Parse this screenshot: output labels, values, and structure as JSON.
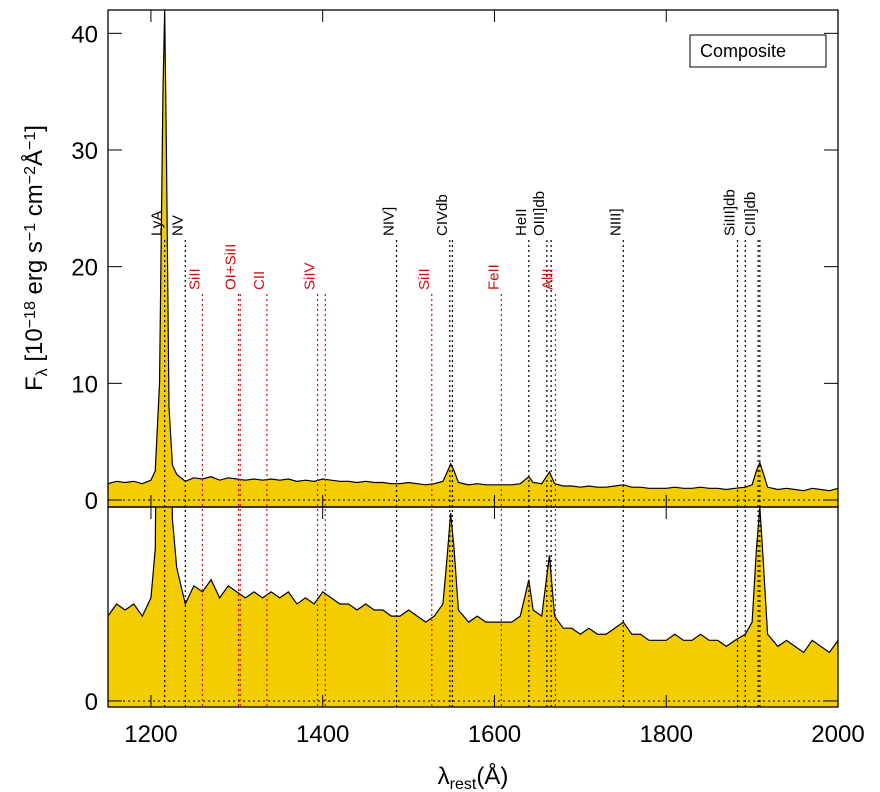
{
  "chart_data": {
    "type": "area",
    "xlabel": [
      {
        "text": "λ"
      },
      {
        "text": "rest",
        "sub": true
      },
      {
        "text": "(Å)"
      }
    ],
    "ylabel": [
      {
        "text": "F"
      },
      {
        "text": "λ",
        "sub": true
      },
      {
        "text": " [10"
      },
      {
        "text": "−18",
        "sup": true
      },
      {
        "text": " erg s"
      },
      {
        "text": "−1",
        "sup": true
      },
      {
        "text": " cm"
      },
      {
        "text": "−2",
        "sup": true
      },
      {
        "text": "Å"
      },
      {
        "text": "−1",
        "sup": true
      },
      {
        "text": "]"
      }
    ],
    "legend": "Composite",
    "legend_corner": "top-right",
    "color": "#f4cd00",
    "xlim": [
      1150,
      2000
    ],
    "xticks": [
      1200,
      1400,
      1600,
      1800,
      2000
    ],
    "panels": [
      {
        "ylim": [
          -0.6,
          42
        ],
        "yticks": [
          0,
          10,
          20,
          30,
          40
        ]
      },
      {
        "ylim": [
          -0.1,
          3.2
        ],
        "yticks": [
          0
        ]
      }
    ],
    "x": [
      1150,
      1160,
      1170,
      1180,
      1190,
      1200,
      1205,
      1210,
      1214,
      1216,
      1218,
      1221,
      1225,
      1230,
      1240,
      1250,
      1260,
      1270,
      1280,
      1290,
      1300,
      1310,
      1320,
      1330,
      1340,
      1350,
      1360,
      1370,
      1380,
      1390,
      1400,
      1410,
      1420,
      1430,
      1440,
      1450,
      1460,
      1470,
      1480,
      1490,
      1500,
      1510,
      1520,
      1530,
      1540,
      1545,
      1549,
      1553,
      1558,
      1570,
      1580,
      1590,
      1600,
      1610,
      1620,
      1630,
      1640,
      1645,
      1655,
      1664,
      1670,
      1680,
      1690,
      1700,
      1710,
      1720,
      1730,
      1740,
      1750,
      1760,
      1770,
      1780,
      1790,
      1800,
      1810,
      1820,
      1830,
      1840,
      1850,
      1860,
      1870,
      1880,
      1892,
      1900,
      1905,
      1909,
      1913,
      1918,
      1930,
      1940,
      1950,
      1960,
      1970,
      1980,
      1990,
      2000
    ],
    "values": [
      1.4,
      1.6,
      1.5,
      1.6,
      1.4,
      1.7,
      2.5,
      10,
      35,
      42,
      30,
      8,
      3,
      2.2,
      1.6,
      1.9,
      1.8,
      2.0,
      1.7,
      1.9,
      1.8,
      1.7,
      1.8,
      1.7,
      1.8,
      1.7,
      1.8,
      1.6,
      1.7,
      1.6,
      1.8,
      1.7,
      1.6,
      1.6,
      1.5,
      1.6,
      1.5,
      1.5,
      1.4,
      1.4,
      1.5,
      1.4,
      1.3,
      1.4,
      1.6,
      2.4,
      3.1,
      2.5,
      1.5,
      1.3,
      1.4,
      1.3,
      1.3,
      1.3,
      1.3,
      1.4,
      2.0,
      1.5,
      1.4,
      2.4,
      1.4,
      1.2,
      1.2,
      1.1,
      1.2,
      1.1,
      1.1,
      1.2,
      1.3,
      1.1,
      1.1,
      1.0,
      1.0,
      1.0,
      1.1,
      1.0,
      1.0,
      1.1,
      1.0,
      1.0,
      0.9,
      1.0,
      1.1,
      1.3,
      2.5,
      3.2,
      2.3,
      1.1,
      0.9,
      1.0,
      0.9,
      0.8,
      1.0,
      0.9,
      0.8,
      1.0
    ],
    "lines": [
      {
        "label": "LyA",
        "wavelengths": [
          1216
        ],
        "color": "#000000",
        "row": 0
      },
      {
        "label": "NV",
        "wavelengths": [
          1240
        ],
        "color": "#000000",
        "row": 0
      },
      {
        "label": "SiII",
        "wavelengths": [
          1260
        ],
        "color": "#cc1111",
        "row": 1
      },
      {
        "label": "OI+SiII",
        "wavelengths": [
          1302,
          1304
        ],
        "color": "#cc1111",
        "row": 1
      },
      {
        "label": "CII",
        "wavelengths": [
          1335
        ],
        "color": "#cc1111",
        "row": 1
      },
      {
        "label": "SiIV",
        "wavelengths": [
          1394,
          1403
        ],
        "color": "#cc1111",
        "row": 1
      },
      {
        "label": "NIV]",
        "wavelengths": [
          1486
        ],
        "color": "#000000",
        "row": 0
      },
      {
        "label": "SiII",
        "wavelengths": [
          1527
        ],
        "color": "#cc1111",
        "row": 1
      },
      {
        "label": "CIVdb",
        "wavelengths": [
          1548,
          1551
        ],
        "color": "#000000",
        "row": 0
      },
      {
        "label": "FeII",
        "wavelengths": [
          1608
        ],
        "color": "#cc1111",
        "row": 1
      },
      {
        "label": "HeII",
        "wavelengths": [
          1640
        ],
        "color": "#000000",
        "row": 0
      },
      {
        "label": "OIII]db",
        "wavelengths": [
          1661,
          1666
        ],
        "color": "#000000",
        "row": 0
      },
      {
        "label": "AlII",
        "wavelengths": [
          1671
        ],
        "color": "#cc1111",
        "row": 1
      },
      {
        "label": "NIII]",
        "wavelengths": [
          1750
        ],
        "color": "#000000",
        "row": 0
      },
      {
        "label": "SiIII]db",
        "wavelengths": [
          1883,
          1892
        ],
        "color": "#000000",
        "row": 0
      },
      {
        "label": "CIII]db",
        "wavelengths": [
          1907,
          1909
        ],
        "color": "#000000",
        "row": 0
      }
    ]
  }
}
